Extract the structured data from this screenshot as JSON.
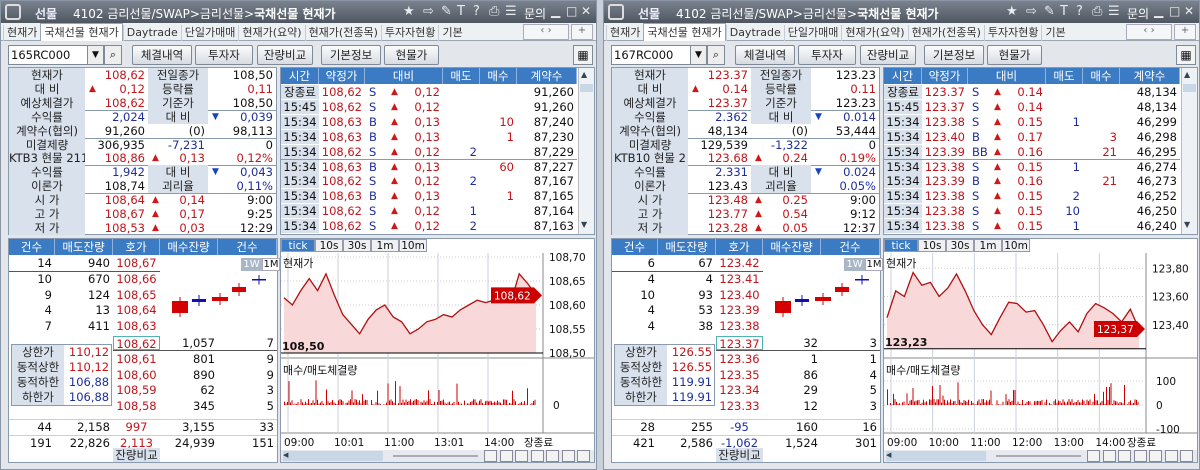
{
  "panels": [
    {
      "title": {
        "logo_label": "선물",
        "path": "4102 금리선물/SWAP>금리선물>",
        "page": "국채선물 현재가",
        "inquiry": "문의"
      },
      "tabs": [
        "현재가",
        "국채선물 현재가",
        "Daytrade",
        "단일가매매",
        "현재가(요약)",
        "현재가(전종목)",
        "투자자현황",
        "기본"
      ],
      "active_tab": 1,
      "code_input": "165RC000",
      "buttons": [
        "체결내역",
        "투자자",
        "잔량비교",
        "기본정보",
        "현물가"
      ],
      "info_rows": [
        [
          {
            "t": "현재가",
            "lbl": 1
          },
          {
            "t": "108,62",
            "c": "red"
          },
          {
            "t": "전일종가",
            "lbl": 1
          },
          {
            "t": "108,50"
          }
        ],
        [
          {
            "t": "대  비",
            "lbl": 1
          },
          {
            "t": "0,12",
            "c": "red",
            "a": "up"
          },
          {
            "t": "등락률",
            "lbl": 1
          },
          {
            "t": "0,11",
            "c": "red"
          }
        ],
        [
          {
            "t": "예상체결가",
            "lbl": 1
          },
          {
            "t": "108,62",
            "c": "red"
          },
          {
            "t": "기준가",
            "lbl": 1
          },
          {
            "t": "108,50"
          }
        ],
        [
          {
            "t": "수익률",
            "lbl": 1
          },
          {
            "t": "2,024",
            "c": "blue"
          },
          {
            "t": "대  비",
            "lbl": 1
          },
          {
            "t": "0,039",
            "c": "blue",
            "a": "down"
          }
        ],
        [
          {
            "t": "계약수(협의)",
            "lbl": 1
          },
          {
            "t": "91,260"
          },
          {
            "t": "(0)"
          },
          {
            "t": "98,113"
          }
        ],
        [
          {
            "t": "미결제량",
            "lbl": 1
          },
          {
            "t": "306,935"
          },
          {
            "t": "-7,231",
            "c": "blue"
          },
          {
            "t": "0"
          }
        ],
        [
          {
            "t": "KTB3 현물 211",
            "lbl": 1
          },
          {
            "t": "108,86",
            "c": "red"
          },
          {
            "t": "0,13",
            "c": "red",
            "a": "up"
          },
          {
            "t": "0,12%",
            "c": "red"
          }
        ],
        [
          {
            "t": "수익률",
            "lbl": 1
          },
          {
            "t": "1,942",
            "c": "blue"
          },
          {
            "t": "대  비",
            "lbl": 1
          },
          {
            "t": "0,043",
            "c": "blue",
            "a": "down"
          }
        ],
        [
          {
            "t": "이론가",
            "lbl": 1
          },
          {
            "t": "108,74"
          },
          {
            "t": "괴리율",
            "lbl": 1
          },
          {
            "t": "0,11%",
            "c": "blue"
          }
        ],
        [
          {
            "t": "시  가",
            "lbl": 1
          },
          {
            "t": "108,64",
            "c": "red"
          },
          {
            "t": "0,14",
            "c": "red",
            "a": "up"
          },
          {
            "t": "9:00"
          }
        ],
        [
          {
            "t": "고  가",
            "lbl": 1
          },
          {
            "t": "108,67",
            "c": "red"
          },
          {
            "t": "0,17",
            "c": "red",
            "a": "up"
          },
          {
            "t": "9:25"
          }
        ],
        [
          {
            "t": "저  가",
            "lbl": 1
          },
          {
            "t": "108,53",
            "c": "red"
          },
          {
            "t": "0,03",
            "c": "red",
            "a": "up"
          },
          {
            "t": "12:29"
          }
        ]
      ],
      "trade_headers": [
        "시간",
        "약정가",
        "대비",
        "매도",
        "매수",
        "계약수"
      ],
      "trades": [
        [
          "장종료",
          "108,62",
          "S",
          "0,12",
          "",
          "",
          "91,260"
        ],
        [
          "15:45",
          "108,62",
          "S",
          "0,12",
          "",
          "",
          "91,260"
        ],
        [
          "15:34",
          "108,63",
          "B",
          "0,13",
          "",
          "10",
          "87,240"
        ],
        [
          "15:34",
          "108,63",
          "B",
          "0,13",
          "",
          "1",
          "87,230"
        ],
        [
          "15:34",
          "108,62",
          "S",
          "0,12",
          "2",
          "",
          "87,229"
        ],
        [
          "15:34",
          "108,63",
          "B",
          "0,13",
          "",
          "60",
          "87,227"
        ],
        [
          "15:34",
          "108,62",
          "S",
          "0,12",
          "2",
          "",
          "87,167"
        ],
        [
          "15:34",
          "108,63",
          "B",
          "0,13",
          "",
          "1",
          "87,165"
        ],
        [
          "15:34",
          "108,62",
          "S",
          "0,12",
          "1",
          "",
          "87,164"
        ],
        [
          "15:34",
          "108,62",
          "S",
          "0,12",
          "2",
          "",
          "87,163"
        ]
      ],
      "book_headers": [
        "건수",
        "매도잔량",
        "호가",
        "매수잔량",
        "건수"
      ],
      "asks": [
        [
          "14",
          "940",
          "108,67"
        ],
        [
          "10",
          "670",
          "108,66"
        ],
        [
          "9",
          "124",
          "108,65"
        ],
        [
          "4",
          "13",
          "108,64"
        ],
        [
          "7",
          "411",
          "108,63"
        ]
      ],
      "bids": [
        [
          "108,62",
          "1,057",
          "7"
        ],
        [
          "108,61",
          "801",
          "9"
        ],
        [
          "108,60",
          "890",
          "9"
        ],
        [
          "108,59",
          "62",
          "3"
        ],
        [
          "108,58",
          "345",
          "5"
        ]
      ],
      "limits": [
        [
          "상한가",
          "110,12",
          "red"
        ],
        [
          "동적상한",
          "110,12",
          "red"
        ],
        [
          "동적하한",
          "106,88",
          "blue"
        ],
        [
          "하한가",
          "106,88",
          "blue"
        ]
      ],
      "totals": [
        [
          "44",
          "2,158",
          "997",
          "3,155",
          "33",
          "red"
        ],
        [
          "191",
          "22,826",
          "2,113",
          "24,939",
          "151",
          "red"
        ]
      ],
      "footer": "잔량비교",
      "period_buttons": [
        "1W",
        "1M"
      ],
      "chart_tabs": [
        "tick",
        "10s",
        "30s",
        "1m",
        "10m"
      ],
      "chart_data": {
        "type": "line",
        "title": "현재가",
        "volume_title": "매수/매도체결량",
        "x_labels": [
          "09:00",
          "10:01",
          "11:00",
          "13:01",
          "14:00",
          "장종료"
        ],
        "y_ticks": [
          "108,70",
          "108,65",
          "108,60",
          "108,55",
          "108,50"
        ],
        "ylim": [
          108.5,
          108.7
        ],
        "prev_close": 108.5,
        "prev_close_label": "108,50",
        "current": 108.62,
        "current_label": "108,62",
        "volume_ticks": [
          "0"
        ],
        "values": [
          108.615,
          108.6,
          108.63,
          108.655,
          108.63,
          108.665,
          108.62,
          108.58,
          108.56,
          108.54,
          108.57,
          108.59,
          108.6,
          108.575,
          108.565,
          108.54,
          108.55,
          108.565,
          108.57,
          108.58,
          108.575,
          108.59,
          108.6,
          108.61,
          108.605,
          108.61,
          108.61,
          108.605,
          108.665,
          108.645,
          108.62
        ]
      }
    },
    {
      "title": {
        "logo_label": "선물",
        "path": "4102 금리선물/SWAP>금리선물>",
        "page": "국채선물 현재가",
        "inquiry": "문의"
      },
      "tabs": [
        "현재가",
        "국채선물 현재가",
        "Daytrade",
        "단일가매매",
        "현재가(요약)",
        "현재가(전종목)",
        "투자자현황",
        "기본"
      ],
      "active_tab": 1,
      "code_input": "167RC000",
      "buttons": [
        "체결내역",
        "투자자",
        "잔량비교",
        "기본정보",
        "현물가"
      ],
      "info_rows": [
        [
          {
            "t": "현재가",
            "lbl": 1
          },
          {
            "t": "123.37",
            "c": "red"
          },
          {
            "t": "전일종가",
            "lbl": 1
          },
          {
            "t": "123.23"
          }
        ],
        [
          {
            "t": "대  비",
            "lbl": 1
          },
          {
            "t": "0.14",
            "c": "red",
            "a": "up"
          },
          {
            "t": "등락률",
            "lbl": 1
          },
          {
            "t": "0.11",
            "c": "red"
          }
        ],
        [
          {
            "t": "예상체결가",
            "lbl": 1
          },
          {
            "t": "123.37",
            "c": "red"
          },
          {
            "t": "기준가",
            "lbl": 1
          },
          {
            "t": "123.23"
          }
        ],
        [
          {
            "t": "수익률",
            "lbl": 1
          },
          {
            "t": "2.362",
            "c": "blue"
          },
          {
            "t": "대  비",
            "lbl": 1
          },
          {
            "t": "0.014",
            "c": "blue",
            "a": "down"
          }
        ],
        [
          {
            "t": "계약수(협의)",
            "lbl": 1
          },
          {
            "t": "48,134"
          },
          {
            "t": "(0)"
          },
          {
            "t": "53,444"
          }
        ],
        [
          {
            "t": "미결제량",
            "lbl": 1
          },
          {
            "t": "129,539"
          },
          {
            "t": "-1,322",
            "c": "blue"
          },
          {
            "t": "0"
          }
        ],
        [
          {
            "t": "KTB10 현물 2",
            "lbl": 1
          },
          {
            "t": "123.68",
            "c": "red"
          },
          {
            "t": "0.24",
            "c": "red",
            "a": "up"
          },
          {
            "t": "0.19%",
            "c": "red"
          }
        ],
        [
          {
            "t": "수익률",
            "lbl": 1
          },
          {
            "t": "2.331",
            "c": "blue"
          },
          {
            "t": "대  비",
            "lbl": 1
          },
          {
            "t": "0.024",
            "c": "blue",
            "a": "down"
          }
        ],
        [
          {
            "t": "이론가",
            "lbl": 1
          },
          {
            "t": "123.43"
          },
          {
            "t": "괴리율",
            "lbl": 1
          },
          {
            "t": "0.05%",
            "c": "blue"
          }
        ],
        [
          {
            "t": "시  가",
            "lbl": 1
          },
          {
            "t": "123.48",
            "c": "red"
          },
          {
            "t": "0.25",
            "c": "red",
            "a": "up"
          },
          {
            "t": "9:00"
          }
        ],
        [
          {
            "t": "고  가",
            "lbl": 1
          },
          {
            "t": "123.77",
            "c": "red"
          },
          {
            "t": "0.54",
            "c": "red",
            "a": "up"
          },
          {
            "t": "9:12"
          }
        ],
        [
          {
            "t": "저  가",
            "lbl": 1
          },
          {
            "t": "123.28",
            "c": "red"
          },
          {
            "t": "0.05",
            "c": "red",
            "a": "up"
          },
          {
            "t": "12:37"
          }
        ]
      ],
      "trade_headers": [
        "시간",
        "약정가",
        "대비",
        "매도",
        "매수",
        "계약수"
      ],
      "trades": [
        [
          "장종료",
          "123.37",
          "S",
          "0.14",
          "",
          "",
          "48,134"
        ],
        [
          "15:45",
          "123.37",
          "S",
          "0.14",
          "",
          "",
          "48,134"
        ],
        [
          "15:34",
          "123.38",
          "S",
          "0.15",
          "1",
          "",
          "46,299"
        ],
        [
          "15:34",
          "123.40",
          "B",
          "0.17",
          "",
          "3",
          "46,298"
        ],
        [
          "15:34",
          "123.39",
          "BB",
          "0.16",
          "",
          "21",
          "46,295"
        ],
        [
          "15:34",
          "123.38",
          "S",
          "0.15",
          "1",
          "",
          "46,274"
        ],
        [
          "15:34",
          "123.39",
          "B",
          "0.16",
          "",
          "21",
          "46,273"
        ],
        [
          "15:34",
          "123.38",
          "S",
          "0.15",
          "2",
          "",
          "46,252"
        ],
        [
          "15:34",
          "123.38",
          "S",
          "0.15",
          "10",
          "",
          "46,250"
        ],
        [
          "15:34",
          "123.38",
          "S",
          "0.15",
          "1",
          "",
          "46,240"
        ]
      ],
      "book_headers": [
        "건수",
        "매도잔량",
        "호가",
        "매수잔량",
        "건수"
      ],
      "asks": [
        [
          "6",
          "67",
          "123.42"
        ],
        [
          "4",
          "4",
          "123.41"
        ],
        [
          "10",
          "93",
          "123.40"
        ],
        [
          "4",
          "53",
          "123.39"
        ],
        [
          "4",
          "38",
          "123.38"
        ]
      ],
      "bids": [
        [
          "123.37",
          "32",
          "3"
        ],
        [
          "123.36",
          "1",
          "1"
        ],
        [
          "123.35",
          "86",
          "4"
        ],
        [
          "123.34",
          "29",
          "5"
        ],
        [
          "123.33",
          "12",
          "3"
        ]
      ],
      "limits": [
        [
          "상한가",
          "126.55",
          "red"
        ],
        [
          "동적상한",
          "126.55",
          "red"
        ],
        [
          "동적하한",
          "119.91",
          "blue"
        ],
        [
          "하한가",
          "119.91",
          "blue"
        ]
      ],
      "totals": [
        [
          "28",
          "255",
          "-95",
          "160",
          "16",
          "blue"
        ],
        [
          "421",
          "2,586",
          "-1,062",
          "1,524",
          "301",
          "blue"
        ]
      ],
      "footer": "잔량비교",
      "period_buttons": [
        "1W",
        "1M"
      ],
      "chart_tabs": [
        "tick",
        "10s",
        "30s",
        "1m",
        "10m"
      ],
      "chart_data": {
        "type": "line",
        "title": "현재가",
        "volume_title": "매수/매도체결량",
        "x_labels": [
          "09:00",
          "10:00",
          "11:00",
          "12:00",
          "13:00",
          "14:00",
          "장종료"
        ],
        "y_ticks": [
          "123,80",
          "123,60",
          "123,40"
        ],
        "ylim": [
          123.2,
          123.88
        ],
        "prev_close": 123.23,
        "prev_close_label": "123,23",
        "current": 123.37,
        "current_label": "123,37",
        "volume_ticks": [
          "100",
          "0",
          "-100"
        ],
        "values": [
          123.45,
          123.64,
          123.6,
          123.77,
          123.68,
          123.7,
          123.6,
          123.66,
          123.76,
          123.64,
          123.5,
          123.4,
          123.33,
          123.45,
          123.56,
          123.55,
          123.49,
          123.5,
          123.4,
          123.28,
          123.36,
          123.42,
          123.35,
          123.48,
          123.55,
          123.52,
          123.48,
          123.42,
          123.51,
          123.37
        ]
      }
    }
  ],
  "colors": {
    "up": "#c0151b",
    "down": "#1d2e9c",
    "header": "#3b7bc4",
    "label_bg": "#d8e1ec"
  }
}
